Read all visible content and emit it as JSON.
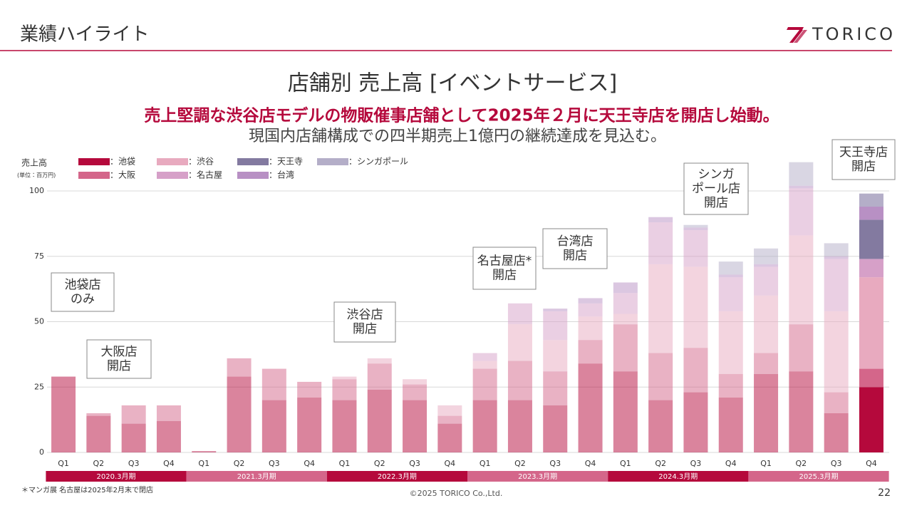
{
  "header": {
    "title": "業績ハイライト",
    "logo": "TORICO"
  },
  "chart_data": {
    "type": "bar",
    "stacked": true,
    "title": "店舗別 売上高 [イベントサービス]",
    "subtitle": [
      "売上堅調な渋谷店モデルの物販催事店舗として2025年２月に天王寺店を開店し始動。",
      "現国内店舗構成での四半期売上1億円の継続達成を見込む。"
    ],
    "ylabel": "売上高",
    "unit": "(単位：百万円)",
    "categories": [
      "Q1",
      "Q2",
      "Q3",
      "Q4",
      "Q1",
      "Q2",
      "Q3",
      "Q4",
      "Q1",
      "Q2",
      "Q3",
      "Q4",
      "Q1",
      "Q2",
      "Q3",
      "Q4",
      "Q1",
      "Q2",
      "Q3",
      "Q4",
      "Q1",
      "Q2",
      "Q3",
      "Q4"
    ],
    "groups": [
      "2020.3月期",
      "2021.3月期",
      "2022.3月期",
      "2023.3月期",
      "2024.3月期",
      "2025.3月期"
    ],
    "ylim": [
      0,
      100
    ],
    "yticks": [
      0,
      25,
      50,
      75,
      100
    ],
    "grid": true,
    "legend_separator": "：",
    "series": [
      {
        "name": "池袋",
        "color": "#b5093c",
        "values": [
          29,
          14,
          11,
          12,
          0.5,
          29,
          20,
          21,
          20,
          24,
          20,
          11,
          20,
          20,
          18,
          34,
          31,
          20,
          23,
          21,
          30,
          31,
          15,
          25
        ]
      },
      {
        "name": "大阪",
        "color": "#d4668a",
        "values": [
          null,
          1,
          7,
          6,
          null,
          7,
          12,
          6,
          8,
          10,
          6,
          3,
          12,
          15,
          13,
          9,
          18,
          18,
          17,
          9,
          8,
          18,
          8,
          7
        ]
      },
      {
        "name": "渋谷",
        "color": "#e8aabf",
        "values": [
          null,
          null,
          null,
          null,
          null,
          null,
          null,
          null,
          1,
          2,
          2,
          4,
          3,
          14,
          12,
          9,
          4,
          34,
          31,
          24,
          22,
          34,
          31,
          35
        ]
      },
      {
        "name": "名古屋",
        "color": "#d6a0c8",
        "values": [
          null,
          null,
          null,
          null,
          null,
          null,
          null,
          null,
          null,
          null,
          null,
          null,
          3,
          8,
          11,
          5,
          8,
          16,
          14,
          13,
          11,
          18,
          20,
          7
        ]
      },
      {
        "name": "天王寺",
        "color": "#837aa0",
        "values": [
          null,
          null,
          null,
          null,
          null,
          null,
          null,
          null,
          null,
          null,
          null,
          null,
          null,
          null,
          null,
          null,
          null,
          null,
          null,
          null,
          null,
          null,
          null,
          15
        ]
      },
      {
        "name": "台湾",
        "color": "#b890c4",
        "values": [
          null,
          null,
          null,
          null,
          null,
          null,
          null,
          null,
          null,
          null,
          null,
          null,
          null,
          null,
          1,
          2,
          4,
          2,
          1,
          1,
          1,
          1,
          1,
          5
        ]
      },
      {
        "name": "シンガポール",
        "color": "#b4aec8",
        "values": [
          null,
          null,
          null,
          null,
          null,
          null,
          null,
          null,
          null,
          null,
          null,
          null,
          null,
          null,
          null,
          null,
          null,
          null,
          1,
          5,
          6,
          9,
          5,
          5
        ]
      }
    ],
    "annotations": [
      [
        "池袋店",
        "のみ"
      ],
      [
        "大阪店",
        "開店"
      ],
      [
        "渋谷店",
        "開店"
      ],
      [
        "名古屋店*",
        "開店"
      ],
      [
        "台湾店",
        "開店"
      ],
      [
        "シンガ",
        "ポール店",
        "開店"
      ],
      [
        "天王寺店",
        "開店"
      ]
    ],
    "footnote": "＊マンガ展 名古屋は2025年2月末で閉店"
  },
  "footer": {
    "copyright": "©2025 TORICO Co.,Ltd.",
    "page": "22"
  }
}
